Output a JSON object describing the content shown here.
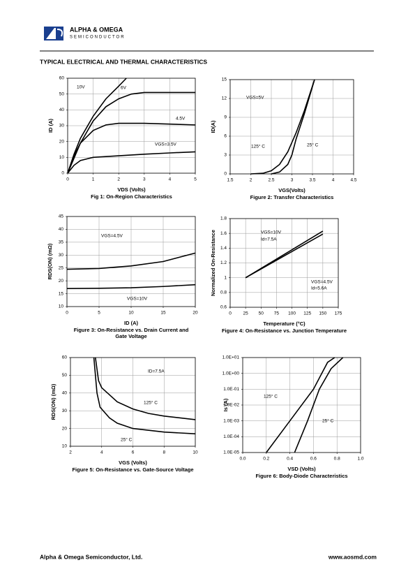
{
  "header": {
    "brand": "ALPHA & OMEGA",
    "sub": "SEMICONDUCTOR",
    "section": "TYPICAL ELECTRICAL AND THERMAL CHARACTERISTICS"
  },
  "footer": {
    "company": "Alpha & Omega Semiconductor, Ltd.",
    "url": "www.aosmd.com"
  },
  "chart_data": [
    {
      "type": "line",
      "title": "Fig 1: On-Region Characteristics",
      "xlabel": "VDS (Volts)",
      "ylabel": "ID (A)",
      "xlim": [
        0,
        5
      ],
      "xticks": [
        0,
        1,
        2,
        3,
        4,
        5
      ],
      "ylim": [
        0,
        60
      ],
      "yticks": [
        0,
        10,
        20,
        30,
        40,
        50,
        60
      ],
      "grid": true,
      "series": [
        {
          "color": "#000000",
          "x": [
            0,
            0.25,
            0.5,
            1,
            1.5,
            2,
            2.3
          ],
          "values": [
            0,
            12,
            22,
            36,
            47,
            55,
            60
          ]
        },
        {
          "color": "#000000",
          "x": [
            0,
            0.5,
            1,
            1.5,
            2,
            2.5,
            3,
            4,
            5
          ],
          "values": [
            0,
            19,
            33,
            42,
            47,
            50,
            51,
            51,
            51
          ]
        },
        {
          "color": "#000000",
          "x": [
            0,
            0.25,
            0.5,
            1,
            1.5,
            2,
            3,
            4,
            5
          ],
          "values": [
            0,
            11,
            19,
            27,
            30.5,
            31.5,
            31.5,
            31,
            30.5
          ]
        },
        {
          "color": "#000000",
          "x": [
            0,
            0.25,
            0.5,
            1,
            2,
            3,
            4,
            5
          ],
          "values": [
            0,
            5,
            8,
            10,
            11,
            12,
            12.8,
            13.5
          ]
        }
      ],
      "annotations": [
        "10V",
        "6V",
        "4.5V",
        "VGS=3.5V"
      ]
    },
    {
      "type": "line",
      "title": "Figure 2: Transfer Characteristics",
      "xlabel": "VGS(Volts)",
      "ylabel": "ID(A)",
      "xlim": [
        1.5,
        4.5
      ],
      "xticks": [
        1.5,
        2,
        2.5,
        3,
        3.5,
        4,
        4.5
      ],
      "ylim": [
        0,
        15
      ],
      "yticks": [
        0,
        3,
        6,
        9,
        12,
        15
      ],
      "grid": true,
      "series": [
        {
          "color": "#000000",
          "x": [
            2,
            2.3,
            2.5,
            2.7,
            2.9,
            3.1,
            3.3,
            3.55
          ],
          "values": [
            0,
            0.1,
            0.5,
            1.5,
            3.5,
            6.5,
            10,
            15
          ]
        },
        {
          "color": "#000000",
          "x": [
            2.5,
            2.7,
            2.9,
            3,
            3.1,
            3.3,
            3.55
          ],
          "values": [
            0,
            0.3,
            1.5,
            3,
            5.5,
            9.5,
            15
          ]
        }
      ],
      "annotations": [
        "VGS=5V",
        "125° C",
        "25° C"
      ]
    },
    {
      "type": "line",
      "title": [
        "Figure 3: On-Resistance vs. Drain Current and",
        "Gate Voltage"
      ],
      "xlabel": "ID (A)",
      "ylabel": "RDS(ON) (mΩ)",
      "xlim": [
        0,
        20
      ],
      "xticks": [
        0,
        5,
        10,
        15,
        20
      ],
      "ylim": [
        10,
        45
      ],
      "yticks": [
        10,
        15,
        20,
        25,
        30,
        35,
        40,
        45
      ],
      "grid": true,
      "series": [
        {
          "color": "#000000",
          "x": [
            0,
            5,
            10,
            15,
            20
          ],
          "values": [
            24.5,
            24.8,
            25.8,
            27.5,
            30.8
          ]
        },
        {
          "color": "#000000",
          "x": [
            0,
            5,
            10,
            15,
            20
          ],
          "values": [
            17,
            17.1,
            17.3,
            17.8,
            18.5
          ]
        }
      ],
      "annotations": [
        "VGS=4.5V",
        "VGS=10V"
      ]
    },
    {
      "type": "line",
      "title": "Figure 4: On-Resistance vs. Junction Temperature",
      "xlabel": "Temperature (°C)",
      "ylabel": "Normalized On-Resistance",
      "xlim": [
        0,
        175
      ],
      "xticks": [
        0,
        25,
        50,
        75,
        100,
        125,
        150,
        175
      ],
      "ylim": [
        0.6,
        1.8
      ],
      "yticks": [
        0.6,
        0.8,
        1,
        1.2,
        1.4,
        1.6,
        1.8
      ],
      "grid": true,
      "series": [
        {
          "color": "#000000",
          "x": [
            25,
            150
          ],
          "values": [
            1,
            1.63
          ]
        },
        {
          "color": "#000000",
          "x": [
            25,
            150
          ],
          "values": [
            1,
            1.59
          ]
        }
      ],
      "annotations": [
        "VGS=10V",
        "Id=7.5A",
        "VGS=4.5V",
        "Id=5.6A"
      ]
    },
    {
      "type": "line",
      "title": "Figure 5: On-Resistance vs. Gate-Source Voltage",
      "xlabel": "VGS (Volts)",
      "ylabel": "RDS(ON) (mΩ)",
      "xlim": [
        2,
        10
      ],
      "xticks": [
        2,
        4,
        6,
        8,
        10
      ],
      "ylim": [
        10,
        60
      ],
      "yticks": [
        10,
        20,
        30,
        40,
        50,
        60
      ],
      "grid": true,
      "series": [
        {
          "color": "#000000",
          "x": [
            3.6,
            3.8,
            4,
            5,
            6,
            7,
            8,
            10
          ],
          "values": [
            60,
            47,
            43,
            35,
            31,
            28.5,
            27,
            25
          ]
        },
        {
          "color": "#000000",
          "x": [
            3.5,
            3.7,
            3.9,
            4.5,
            5,
            6,
            8,
            10
          ],
          "values": [
            60,
            40,
            32,
            26,
            23,
            20,
            18,
            17
          ]
        }
      ],
      "annotations": [
        "ID=7.5A",
        "125° C",
        "25° C"
      ]
    },
    {
      "type": "line",
      "title": "Figure 6: Body-Diode Characteristics",
      "xlabel": "VSD (Volts)",
      "ylabel": "Is (A)",
      "log_y": true,
      "xlim": [
        0,
        1
      ],
      "xticks": [
        {
          "value": 0,
          "label": "0.0"
        },
        0.2,
        0.4,
        0.6,
        0.8,
        {
          "value": 1,
          "label": "1.0"
        }
      ],
      "ylim": [
        1e-05,
        10
      ],
      "yticks": [
        {
          "value": 1e-05,
          "label": "1.0E-05"
        },
        {
          "value": 0.0001,
          "label": "1.0E-04"
        },
        {
          "value": 0.001,
          "label": "1.0E-03"
        },
        {
          "value": 0.01,
          "label": "1.0E-02"
        },
        {
          "value": 0.1,
          "label": "1.0E-01"
        },
        {
          "value": 1,
          "label": "1.0E+00"
        },
        {
          "value": 10,
          "label": "1.0E+01"
        }
      ],
      "grid": true,
      "series": [
        {
          "color": "#000000",
          "x": [
            0.2,
            0.4,
            0.6,
            0.72,
            0.78
          ],
          "values": [
            1e-05,
            0.001,
            0.1,
            5,
            10
          ]
        },
        {
          "color": "#000000",
          "x": [
            0.44,
            0.55,
            0.65,
            0.75,
            0.85
          ],
          "values": [
            1e-05,
            0.001,
            0.1,
            2,
            10
          ]
        }
      ],
      "annotations": [
        "125° C",
        "25° C"
      ]
    }
  ]
}
